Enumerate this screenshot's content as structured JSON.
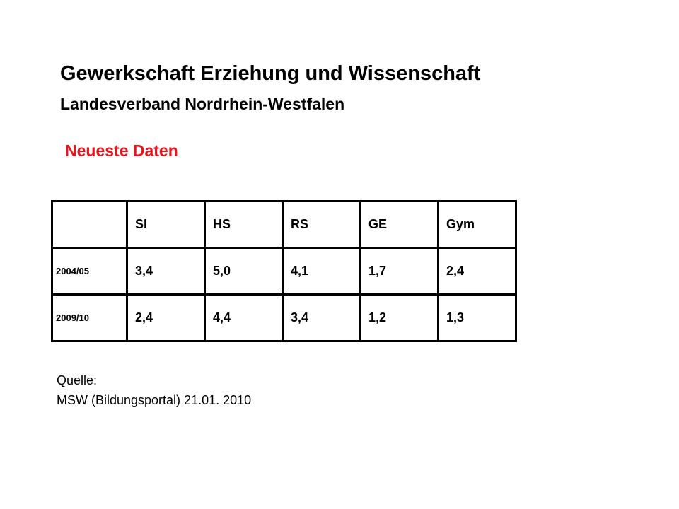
{
  "header": {
    "title": "Gewerkschaft Erziehung und Wissenschaft",
    "subtitle": "Landesverband Nordrhein-Westfalen"
  },
  "section_title": "Neueste Daten",
  "table": {
    "columns": [
      "SI",
      "HS",
      "RS",
      "GE",
      "Gym"
    ],
    "rows": [
      [
        "2004/05",
        "3,4",
        "5,0",
        "4,1",
        "1,7",
        "2,4"
      ],
      [
        "2009/10",
        "2,4",
        "4,4",
        "3,4",
        "1,2",
        "1,3"
      ]
    ]
  },
  "source": {
    "label": "Quelle:",
    "text": "MSW (Bildungsportal) 21.01. 2010"
  }
}
